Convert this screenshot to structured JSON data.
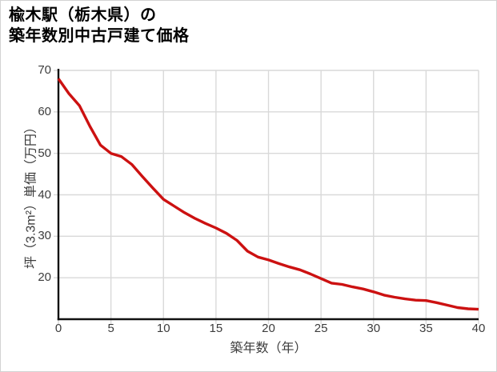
{
  "window": {
    "background": "#ffffff",
    "border_color": "#d3d3d3"
  },
  "title": {
    "line1": "楡木駅（栃木県）の",
    "line2": "築年数別中古戸建て価格"
  },
  "chart_data": {
    "type": "line",
    "title": "楡木駅（栃木県）の築年数別中古戸建て価格",
    "xlabel": "築年数（年）",
    "ylabel": "坪（3.3m²）単価（万円）",
    "xlim": [
      0,
      40
    ],
    "ylim": [
      10,
      70
    ],
    "x_ticks": [
      0,
      5,
      10,
      15,
      20,
      25,
      30,
      35,
      40
    ],
    "y_ticks": [
      20,
      30,
      40,
      50,
      60,
      70
    ],
    "grid": true,
    "legend": false,
    "colors": {
      "line": "#cc1111",
      "grid": "#d9d9d9",
      "axis": "#111111",
      "tick_text": "#3c3c3c",
      "title_text": "#000000"
    },
    "series": [
      {
        "x": [
          0,
          1,
          2,
          3,
          4,
          5,
          6,
          7,
          8,
          9,
          10,
          11,
          12,
          13,
          14,
          15,
          16,
          17,
          18,
          19,
          20,
          21,
          22,
          23,
          24,
          25,
          26,
          27,
          28,
          29,
          30,
          31,
          32,
          33,
          34,
          35,
          36,
          37,
          38,
          39,
          40
        ],
        "values": [
          68,
          64.4,
          61.5,
          56.5,
          52,
          50,
          49.2,
          47.3,
          44.4,
          41.6,
          38.9,
          37.3,
          35.7,
          34.3,
          33.1,
          32,
          30.7,
          29,
          26.4,
          25,
          24.3,
          23.4,
          22.6,
          21.9,
          20.9,
          19.8,
          18.7,
          18.4,
          17.8,
          17.3,
          16.6,
          15.8,
          15.3,
          14.9,
          14.6,
          14.5,
          14.0,
          13.4,
          12.8,
          12.5,
          12.4
        ]
      }
    ]
  }
}
